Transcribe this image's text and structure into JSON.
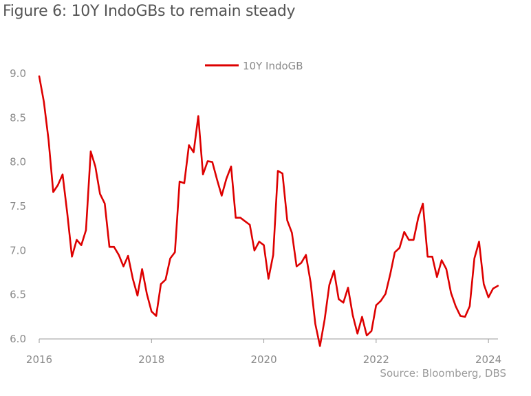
{
  "title": "Figure 6: 10Y IndoGBs to remain steady",
  "source": "Source: Bloomberg, DBS",
  "chart_data": {
    "type": "line",
    "title": "Figure 6: 10Y IndoGBs to remain steady",
    "xlabel": "",
    "ylabel": "",
    "xlim": [
      2016,
      2024.17
    ],
    "ylim": [
      6.0,
      9.0
    ],
    "x_ticks": [
      "2016",
      "2018",
      "2020",
      "2022",
      "2024"
    ],
    "y_ticks": [
      "9.0",
      "8.5",
      "8.0",
      "7.5",
      "7.0",
      "6.5",
      "6.0"
    ],
    "grid": false,
    "legend_position": "top-center",
    "series": [
      {
        "name": "10Y IndoGB",
        "color": "#dd0000",
        "x": [
          2016.0,
          2016.083,
          2016.167,
          2016.25,
          2016.333,
          2016.417,
          2016.5,
          2016.583,
          2016.667,
          2016.75,
          2016.833,
          2016.917,
          2017.0,
          2017.083,
          2017.167,
          2017.25,
          2017.333,
          2017.417,
          2017.5,
          2017.583,
          2017.667,
          2017.75,
          2017.833,
          2017.917,
          2018.0,
          2018.083,
          2018.167,
          2018.25,
          2018.333,
          2018.417,
          2018.5,
          2018.583,
          2018.667,
          2018.75,
          2018.833,
          2018.917,
          2019.0,
          2019.083,
          2019.167,
          2019.25,
          2019.333,
          2019.417,
          2019.5,
          2019.583,
          2019.667,
          2019.75,
          2019.833,
          2019.917,
          2020.0,
          2020.083,
          2020.167,
          2020.25,
          2020.333,
          2020.417,
          2020.5,
          2020.583,
          2020.667,
          2020.75,
          2020.833,
          2020.917,
          2021.0,
          2021.083,
          2021.167,
          2021.25,
          2021.333,
          2021.417,
          2021.5,
          2021.583,
          2021.667,
          2021.75,
          2021.833,
          2021.917,
          2022.0,
          2022.083,
          2022.167,
          2022.25,
          2022.333,
          2022.417,
          2022.5,
          2022.583,
          2022.667,
          2022.75,
          2022.833,
          2022.917,
          2023.0,
          2023.083,
          2023.167,
          2023.25,
          2023.333,
          2023.417,
          2023.5,
          2023.583,
          2023.667,
          2023.75,
          2023.833,
          2023.917,
          2024.0,
          2024.083,
          2024.167
        ],
        "values": [
          8.97,
          8.68,
          8.25,
          7.66,
          7.74,
          7.86,
          7.42,
          6.93,
          7.12,
          7.06,
          7.23,
          8.12,
          7.95,
          7.64,
          7.53,
          7.04,
          7.04,
          6.95,
          6.82,
          6.94,
          6.68,
          6.49,
          6.79,
          6.51,
          6.31,
          6.26,
          6.62,
          6.67,
          6.91,
          6.98,
          7.78,
          7.76,
          8.19,
          8.11,
          8.52,
          7.86,
          8.01,
          8.0,
          7.8,
          7.62,
          7.81,
          7.95,
          7.37,
          7.37,
          7.33,
          7.29,
          7.0,
          7.1,
          7.06,
          6.68,
          6.95,
          7.9,
          7.87,
          7.34,
          7.2,
          6.82,
          6.86,
          6.95,
          6.64,
          6.17,
          5.92,
          6.22,
          6.61,
          6.77,
          6.45,
          6.41,
          6.58,
          6.27,
          6.06,
          6.25,
          6.04,
          6.09,
          6.38,
          6.43,
          6.51,
          6.73,
          6.98,
          7.03,
          7.21,
          7.12,
          7.12,
          7.37,
          7.53,
          6.93,
          6.93,
          6.7,
          6.89,
          6.79,
          6.52,
          6.37,
          6.26,
          6.25,
          6.37,
          6.91,
          7.1,
          6.62,
          6.47,
          6.57,
          6.6
        ]
      }
    ]
  }
}
